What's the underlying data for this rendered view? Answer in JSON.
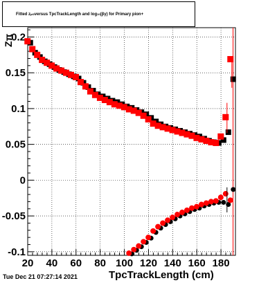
{
  "title_parts": {
    "pre": "Fitted  z",
    "sub": "pi0",
    "mid": "  versus TpcTrackLength and log",
    "sub2": "10",
    "post": "(βγ) for Primary pion+"
  },
  "timestamp": "Tue Dec 21 07:27:14 2021",
  "ylabel_visible": "Zπ",
  "chart_data": {
    "type": "scatter",
    "xlabel": "TpcTrackLength (cm)",
    "xlim": [
      20,
      192
    ],
    "ylim": [
      -0.105,
      0.213
    ],
    "x_ticks": [
      {
        "v": 20,
        "label": "20"
      },
      {
        "v": 40,
        "label": "40"
      },
      {
        "v": 60,
        "label": "60"
      },
      {
        "v": 80,
        "label": "80"
      },
      {
        "v": 100,
        "label": "100"
      },
      {
        "v": 120,
        "label": "120"
      },
      {
        "v": 140,
        "label": "140"
      },
      {
        "v": 160,
        "label": "160"
      },
      {
        "v": 180,
        "label": "180"
      }
    ],
    "y_ticks": [
      {
        "v": -0.1,
        "label": "-0.1"
      },
      {
        "v": -0.05,
        "label": "-0.05"
      },
      {
        "v": 0,
        "label": "0"
      },
      {
        "v": 0.05,
        "label": "0.05"
      },
      {
        "v": 0.1,
        "label": "0.1"
      },
      {
        "v": 0.15,
        "label": "0.15"
      },
      {
        "v": 0.2,
        "label": "0.2"
      }
    ],
    "vertical_line_x": 190,
    "series": [
      {
        "color": "#000000",
        "marker": "square",
        "points": [
          [
            21,
            0.192
          ],
          [
            25,
            0.178
          ],
          [
            29,
            0.172
          ],
          [
            33,
            0.166
          ],
          [
            37,
            0.162
          ],
          [
            41,
            0.158
          ],
          [
            45,
            0.154
          ],
          [
            49,
            0.151
          ],
          [
            53,
            0.148
          ],
          [
            57,
            0.145
          ],
          [
            61,
            0.142
          ],
          [
            65,
            0.136
          ],
          [
            69,
            0.13
          ],
          [
            73,
            0.125
          ],
          [
            77,
            0.12
          ],
          [
            81,
            0.117
          ],
          [
            85,
            0.114
          ],
          [
            89,
            0.111
          ],
          [
            93,
            0.109
          ],
          [
            97,
            0.106
          ],
          [
            101,
            0.103
          ],
          [
            105,
            0.101
          ],
          [
            109,
            0.098
          ],
          [
            113,
            0.095
          ],
          [
            117,
            0.092
          ],
          [
            121,
            0.087
          ],
          [
            125,
            0.082
          ],
          [
            129,
            0.078
          ],
          [
            133,
            0.075
          ],
          [
            137,
            0.073
          ],
          [
            141,
            0.071
          ],
          [
            145,
            0.069
          ],
          [
            149,
            0.067
          ],
          [
            153,
            0.065
          ],
          [
            157,
            0.063
          ],
          [
            161,
            0.061
          ],
          [
            165,
            0.058
          ],
          [
            169,
            0.055
          ],
          [
            173,
            0.053
          ],
          [
            177,
            0.052
          ],
          [
            181,
            0.056
          ],
          [
            185,
            0.067
          ],
          [
            189,
            0.141
          ]
        ]
      },
      {
        "color": "#ff0000",
        "marker": "square",
        "points": [
          [
            21,
            0.194
          ],
          [
            25,
            0.183
          ],
          [
            29,
            0.175
          ],
          [
            33,
            0.168
          ],
          [
            37,
            0.164
          ],
          [
            41,
            0.16
          ],
          [
            45,
            0.156
          ],
          [
            49,
            0.153
          ],
          [
            53,
            0.15
          ],
          [
            57,
            0.147
          ],
          [
            61,
            0.144
          ],
          [
            65,
            0.137
          ],
          [
            69,
            0.131
          ],
          [
            73,
            0.124
          ],
          [
            77,
            0.119
          ],
          [
            81,
            0.115
          ],
          [
            85,
            0.112
          ],
          [
            89,
            0.109
          ],
          [
            93,
            0.106
          ],
          [
            97,
            0.104
          ],
          [
            101,
            0.102
          ],
          [
            105,
            0.099
          ],
          [
            109,
            0.097
          ],
          [
            113,
            0.094
          ],
          [
            117,
            0.09
          ],
          [
            121,
            0.085
          ],
          [
            125,
            0.079
          ],
          [
            129,
            0.076
          ],
          [
            133,
            0.074
          ],
          [
            137,
            0.072
          ],
          [
            141,
            0.07
          ],
          [
            145,
            0.068
          ],
          [
            149,
            0.066
          ],
          [
            153,
            0.064
          ],
          [
            157,
            0.062
          ],
          [
            161,
            0.059
          ],
          [
            165,
            0.057
          ],
          [
            169,
            0.055
          ],
          [
            173,
            0.053
          ],
          [
            177,
            0.052
          ],
          [
            181,
            0.061
          ],
          [
            185,
            0.088
          ],
          [
            189,
            0.169
          ]
        ]
      },
      {
        "color": "#000000",
        "marker": "circle",
        "points": [
          [
            105,
            -0.103
          ],
          [
            109,
            -0.098
          ],
          [
            113,
            -0.093
          ],
          [
            117,
            -0.087
          ],
          [
            121,
            -0.081
          ],
          [
            125,
            -0.073
          ],
          [
            129,
            -0.067
          ],
          [
            133,
            -0.062
          ],
          [
            137,
            -0.058
          ],
          [
            141,
            -0.054
          ],
          [
            145,
            -0.05
          ],
          [
            149,
            -0.047
          ],
          [
            153,
            -0.044
          ],
          [
            157,
            -0.041
          ],
          [
            161,
            -0.039
          ],
          [
            165,
            -0.036
          ],
          [
            169,
            -0.034
          ],
          [
            173,
            -0.032
          ],
          [
            177,
            -0.031
          ],
          [
            181,
            -0.031
          ],
          [
            185,
            -0.034
          ],
          [
            189,
            -0.013
          ]
        ]
      },
      {
        "color": "#ff0000",
        "marker": "circle",
        "points": [
          [
            105,
            -0.102
          ],
          [
            109,
            -0.097
          ],
          [
            113,
            -0.092
          ],
          [
            117,
            -0.086
          ],
          [
            121,
            -0.08
          ],
          [
            125,
            -0.071
          ],
          [
            129,
            -0.065
          ],
          [
            133,
            -0.06
          ],
          [
            137,
            -0.056
          ],
          [
            141,
            -0.052
          ],
          [
            145,
            -0.048
          ],
          [
            149,
            -0.045
          ],
          [
            153,
            -0.042
          ],
          [
            157,
            -0.039
          ],
          [
            161,
            -0.037
          ],
          [
            165,
            -0.034
          ],
          [
            169,
            -0.032
          ],
          [
            173,
            -0.03
          ],
          [
            177,
            -0.029
          ],
          [
            181,
            -0.024
          ],
          [
            185,
            -0.019
          ],
          [
            189,
            -0.028
          ]
        ]
      }
    ]
  }
}
